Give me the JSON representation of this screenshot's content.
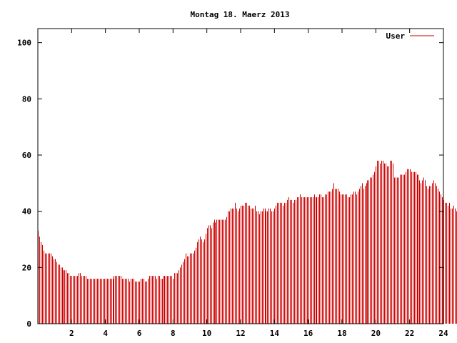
{
  "chart_data": {
    "type": "bar",
    "title": "Montag 18. Maerz 2013",
    "xlabel": "",
    "ylabel": "",
    "xlim": [
      0,
      24
    ],
    "ylim": [
      0,
      105
    ],
    "x_ticks": [
      2,
      4,
      6,
      8,
      10,
      12,
      14,
      16,
      18,
      20,
      22,
      24
    ],
    "x_tick_labels": [
      "2",
      "4",
      "6",
      "8",
      "10",
      "12",
      "14",
      "16",
      "18",
      "20",
      "22",
      "24"
    ],
    "y_ticks": [
      0,
      20,
      40,
      60,
      80,
      100
    ],
    "y_tick_labels": [
      "0",
      "20",
      "40",
      "60",
      "80",
      "100"
    ],
    "grid": false,
    "legend_position": "top-right",
    "series": [
      {
        "name": "User",
        "color": "#cc0000",
        "x_step_hours": 0.083333,
        "values": [
          33,
          31,
          29,
          28,
          26,
          25,
          25,
          25,
          25,
          25,
          24,
          23,
          23,
          22,
          21,
          21,
          20,
          20,
          19,
          19,
          19,
          18,
          18,
          17,
          17,
          17,
          17,
          17,
          17,
          18,
          18,
          17,
          17,
          17,
          17,
          16,
          16,
          16,
          16,
          16,
          16,
          16,
          16,
          16,
          16,
          16,
          16,
          16,
          16,
          16,
          16,
          16,
          16,
          16,
          17,
          17,
          17,
          17,
          17,
          17,
          16,
          16,
          16,
          16,
          16,
          15,
          16,
          16,
          16,
          15,
          15,
          15,
          15,
          16,
          16,
          16,
          15,
          15,
          16,
          17,
          17,
          17,
          17,
          17,
          16,
          17,
          17,
          16,
          16,
          17,
          17,
          17,
          17,
          17,
          17,
          17,
          16,
          18,
          18,
          18,
          19,
          20,
          21,
          22,
          23,
          25,
          24,
          24,
          25,
          25,
          25,
          26,
          27,
          29,
          30,
          31,
          30,
          29,
          30,
          32,
          34,
          35,
          35,
          34,
          36,
          37,
          36,
          37,
          37,
          37,
          37,
          37,
          37,
          37,
          38,
          40,
          40,
          41,
          41,
          41,
          43,
          41,
          40,
          41,
          42,
          42,
          42,
          43,
          43,
          42,
          42,
          41,
          41,
          41,
          42,
          40,
          40,
          39,
          40,
          40,
          41,
          41,
          40,
          40,
          41,
          41,
          40,
          40,
          41,
          42,
          43,
          43,
          43,
          43,
          42,
          43,
          43,
          44,
          45,
          44,
          44,
          43,
          44,
          44,
          45,
          45,
          46,
          45,
          45,
          45,
          45,
          45,
          45,
          45,
          45,
          45,
          46,
          45,
          45,
          45,
          46,
          46,
          45,
          45,
          46,
          46,
          47,
          47,
          47,
          48,
          50,
          48,
          48,
          48,
          47,
          46,
          46,
          46,
          46,
          46,
          45,
          45,
          46,
          46,
          47,
          47,
          46,
          47,
          48,
          49,
          50,
          48,
          49,
          50,
          51,
          51,
          52,
          52,
          53,
          54,
          56,
          58,
          58,
          57,
          58,
          58,
          57,
          57,
          56,
          56,
          58,
          58,
          57,
          52,
          52,
          52,
          52,
          53,
          53,
          53,
          53,
          54,
          55,
          55,
          55,
          54,
          54,
          54,
          54,
          53,
          53,
          51,
          50,
          51,
          52,
          51,
          49,
          48,
          49,
          49,
          50,
          51,
          50,
          49,
          48,
          47,
          46,
          45,
          44,
          43,
          43,
          42,
          43,
          41,
          41,
          42,
          41,
          40,
          41,
          40,
          40
        ]
      }
    ]
  }
}
